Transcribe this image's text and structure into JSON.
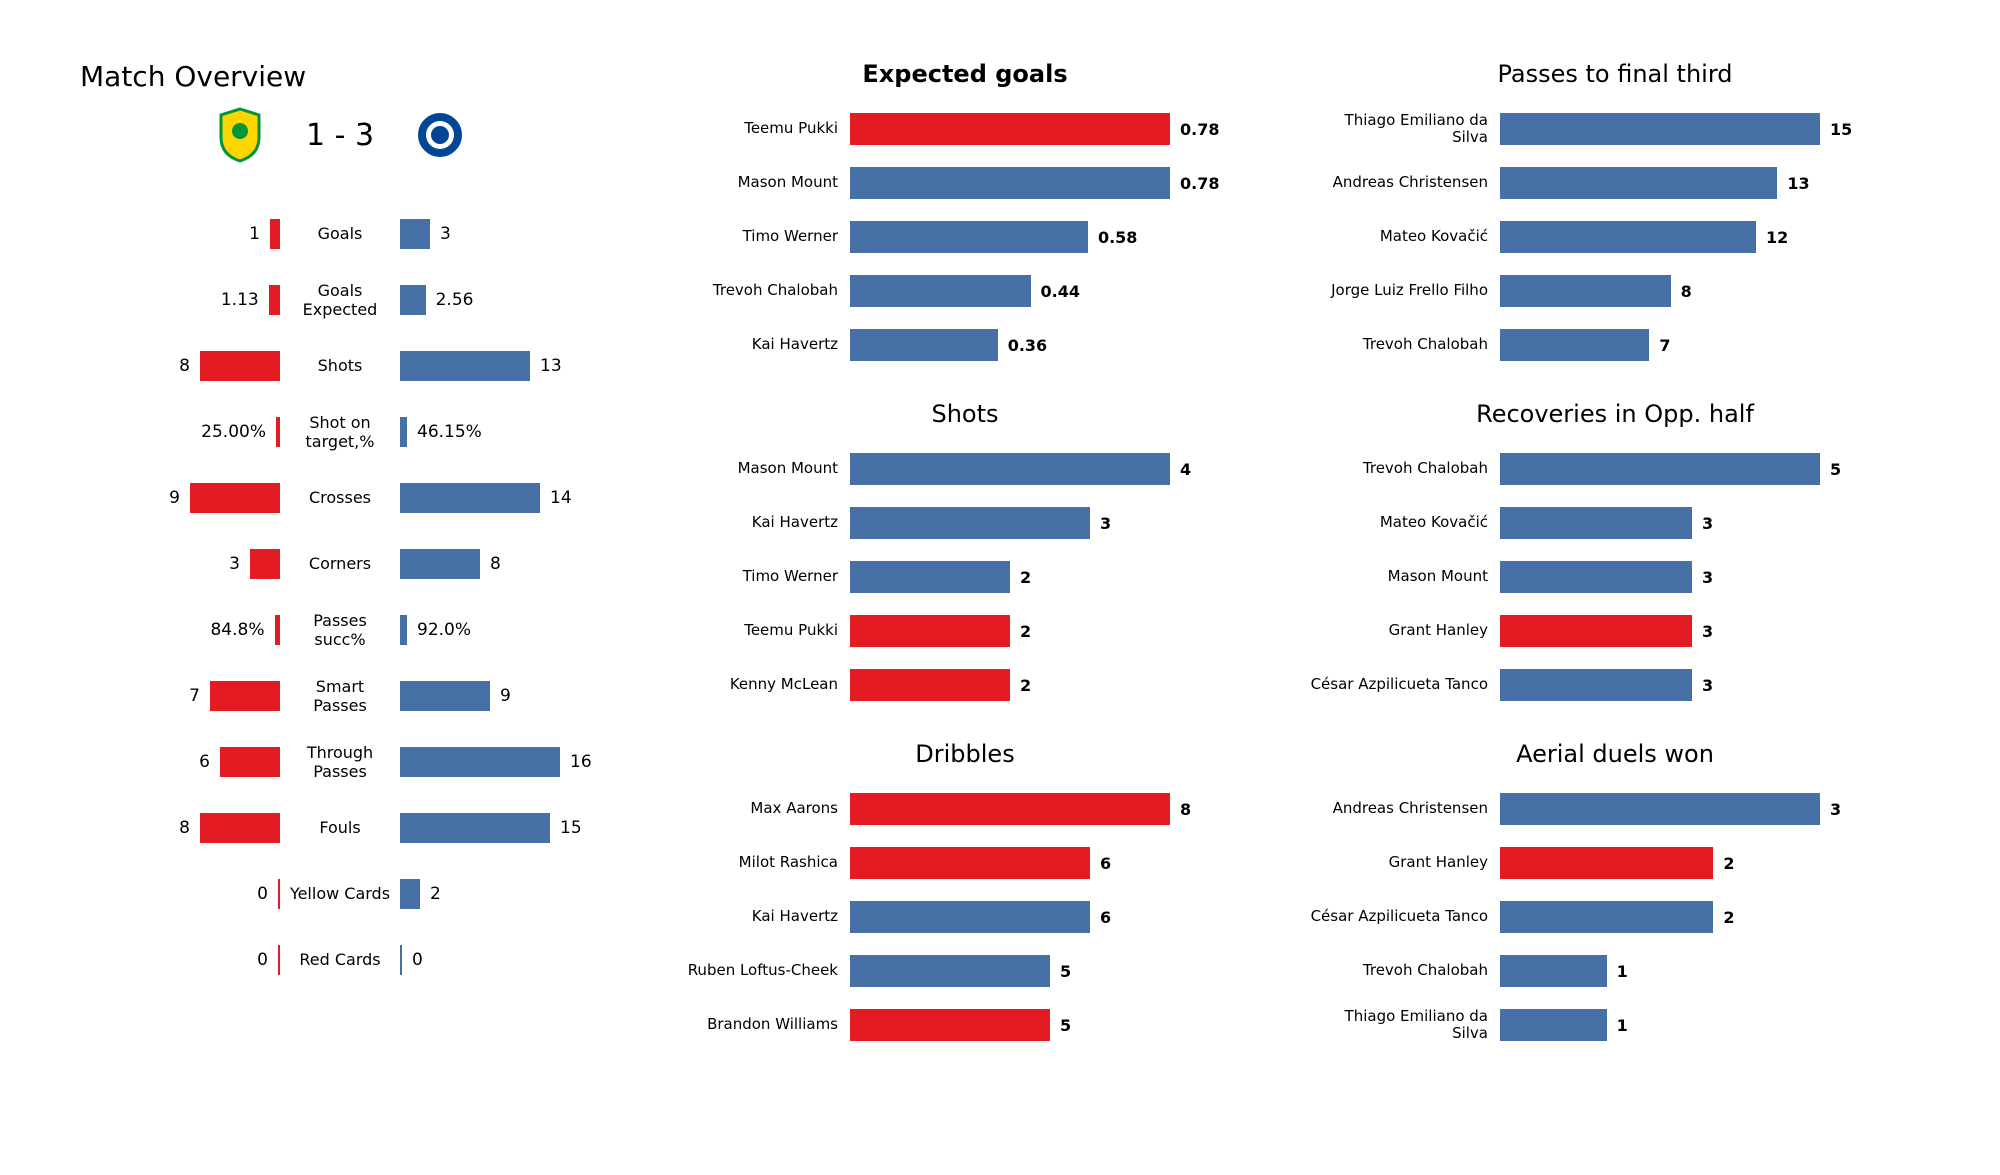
{
  "colors": {
    "red": "#e31b23",
    "blue": "#4770a6",
    "text": "#222222",
    "bg": "#ffffff"
  },
  "title": "Match Overview",
  "score": {
    "home": 1,
    "away": 3,
    "sep": " - "
  },
  "crests": {
    "home_bg": "#ffd500",
    "home_accent": "#009639",
    "away_bg": "#034694",
    "away_accent": "#ffffff"
  },
  "overview": {
    "max_scale": 18,
    "rows": [
      {
        "label": "Goals",
        "l": "1",
        "r": "3",
        "lw": 1,
        "rw": 3
      },
      {
        "label": "Goals Expected",
        "l": "1.13",
        "r": "2.56",
        "lw": 1.13,
        "rw": 2.56
      },
      {
        "label": "Shots",
        "l": "8",
        "r": "13",
        "lw": 8,
        "rw": 13
      },
      {
        "label": "Shot on target,%",
        "l": "25.00%",
        "r": "46.15%",
        "lw": 0.4,
        "rw": 0.7
      },
      {
        "label": "Crosses",
        "l": "9",
        "r": "14",
        "lw": 9,
        "rw": 14
      },
      {
        "label": "Corners",
        "l": "3",
        "r": "8",
        "lw": 3,
        "rw": 8
      },
      {
        "label": "Passes succ%",
        "l": "84.8%",
        "r": "92.0%",
        "lw": 0.55,
        "rw": 0.7
      },
      {
        "label": "Smart Passes",
        "l": "7",
        "r": "9",
        "lw": 7,
        "rw": 9
      },
      {
        "label": "Through Passes",
        "l": "6",
        "r": "16",
        "lw": 6,
        "rw": 16
      },
      {
        "label": "Fouls",
        "l": "8",
        "r": "15",
        "lw": 8,
        "rw": 15
      },
      {
        "label": "Yellow Cards",
        "l": "0",
        "r": "2",
        "lw": 0,
        "rw": 2
      },
      {
        "label": "Red Cards",
        "l": "0",
        "r": "0",
        "lw": 0,
        "rw": 0
      }
    ]
  },
  "panels_mid": [
    {
      "title": "Expected goals",
      "title_bold": true,
      "max": 0.78,
      "val_bold": true,
      "rows": [
        {
          "name": "Teemu Pukki",
          "v": 0.78,
          "vt": "0.78",
          "team": "red"
        },
        {
          "name": "Mason Mount",
          "v": 0.78,
          "vt": "0.78",
          "team": "blue"
        },
        {
          "name": "Timo Werner",
          "v": 0.58,
          "vt": "0.58",
          "team": "blue"
        },
        {
          "name": "Trevoh Chalobah",
          "v": 0.44,
          "vt": "0.44",
          "team": "blue"
        },
        {
          "name": "Kai Havertz",
          "v": 0.36,
          "vt": "0.36",
          "team": "blue"
        }
      ]
    },
    {
      "title": "Shots",
      "title_bold": false,
      "max": 4,
      "val_bold": true,
      "rows": [
        {
          "name": "Mason Mount",
          "v": 4,
          "vt": "4",
          "team": "blue"
        },
        {
          "name": "Kai Havertz",
          "v": 3,
          "vt": "3",
          "team": "blue"
        },
        {
          "name": "Timo Werner",
          "v": 2,
          "vt": "2",
          "team": "blue"
        },
        {
          "name": "Teemu Pukki",
          "v": 2,
          "vt": "2",
          "team": "red"
        },
        {
          "name": "Kenny McLean",
          "v": 2,
          "vt": "2",
          "team": "red"
        }
      ]
    },
    {
      "title": "Dribbles",
      "title_bold": false,
      "max": 8,
      "val_bold": true,
      "rows": [
        {
          "name": "Max Aarons",
          "v": 8,
          "vt": "8",
          "team": "red"
        },
        {
          "name": "Milot Rashica",
          "v": 6,
          "vt": "6",
          "team": "red"
        },
        {
          "name": "Kai Havertz",
          "v": 6,
          "vt": "6",
          "team": "blue"
        },
        {
          "name": "Ruben Loftus-Cheek",
          "v": 5,
          "vt": "5",
          "team": "blue"
        },
        {
          "name": "Brandon Williams",
          "v": 5,
          "vt": "5",
          "team": "red"
        }
      ]
    }
  ],
  "panels_far": [
    {
      "title": "Passes to final third",
      "title_bold": false,
      "max": 15,
      "val_bold": true,
      "rows": [
        {
          "name": "Thiago Emiliano da Silva",
          "v": 15,
          "vt": "15",
          "team": "blue"
        },
        {
          "name": "Andreas Christensen",
          "v": 13,
          "vt": "13",
          "team": "blue"
        },
        {
          "name": "Mateo Kovačić",
          "v": 12,
          "vt": "12",
          "team": "blue"
        },
        {
          "name": "Jorge Luiz Frello Filho",
          "v": 8,
          "vt": "8",
          "team": "blue"
        },
        {
          "name": "Trevoh Chalobah",
          "v": 7,
          "vt": "7",
          "team": "blue"
        }
      ]
    },
    {
      "title": "Recoveries in Opp. half",
      "title_bold": false,
      "max": 5,
      "val_bold": true,
      "rows": [
        {
          "name": "Trevoh Chalobah",
          "v": 5,
          "vt": "5",
          "team": "blue"
        },
        {
          "name": "Mateo Kovačić",
          "v": 3,
          "vt": "3",
          "team": "blue"
        },
        {
          "name": "Mason Mount",
          "v": 3,
          "vt": "3",
          "team": "blue"
        },
        {
          "name": "Grant Hanley",
          "v": 3,
          "vt": "3",
          "team": "red"
        },
        {
          "name": "César Azpilicueta Tanco",
          "v": 3,
          "vt": "3",
          "team": "blue"
        }
      ]
    },
    {
      "title": "Aerial duels won",
      "title_bold": false,
      "max": 3,
      "val_bold": true,
      "rows": [
        {
          "name": "Andreas Christensen",
          "v": 3,
          "vt": "3",
          "team": "blue"
        },
        {
          "name": "Grant Hanley",
          "v": 2,
          "vt": "2",
          "team": "red"
        },
        {
          "name": "César Azpilicueta Tanco",
          "v": 2,
          "vt": "2",
          "team": "blue"
        },
        {
          "name": "Trevoh Chalobah",
          "v": 1,
          "vt": "1",
          "team": "blue"
        },
        {
          "name": "Thiago Emiliano da Silva",
          "v": 1,
          "vt": "1",
          "team": "blue"
        }
      ]
    }
  ]
}
